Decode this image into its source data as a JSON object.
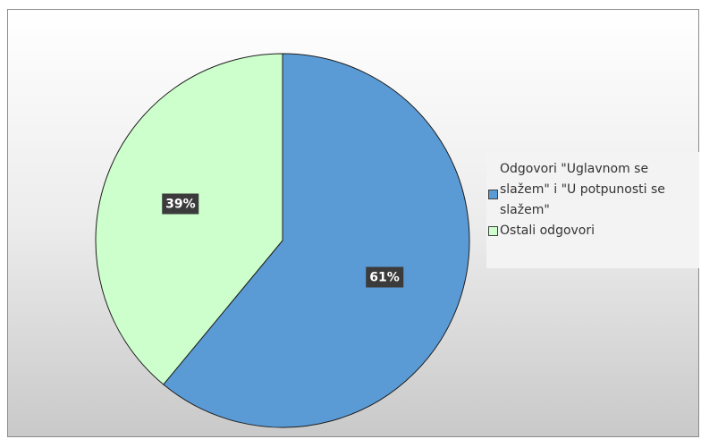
{
  "chart_data": {
    "type": "pie",
    "title": "",
    "series": [
      {
        "name": "Odgovori \"Uglavnom se slažem\" i \"U potpunosti se slažem\"",
        "value": 61,
        "label": "61%",
        "color": "#5b9bd5"
      },
      {
        "name": "Ostali odgovori",
        "value": 39,
        "label": "39%",
        "color": "#ccffcc"
      }
    ],
    "legend": {
      "position": "right",
      "items": [
        "Odgovori \"Uglavnom se slažem\" i \"U potpunosti se slažem\"",
        "Ostali odgovori"
      ]
    }
  }
}
